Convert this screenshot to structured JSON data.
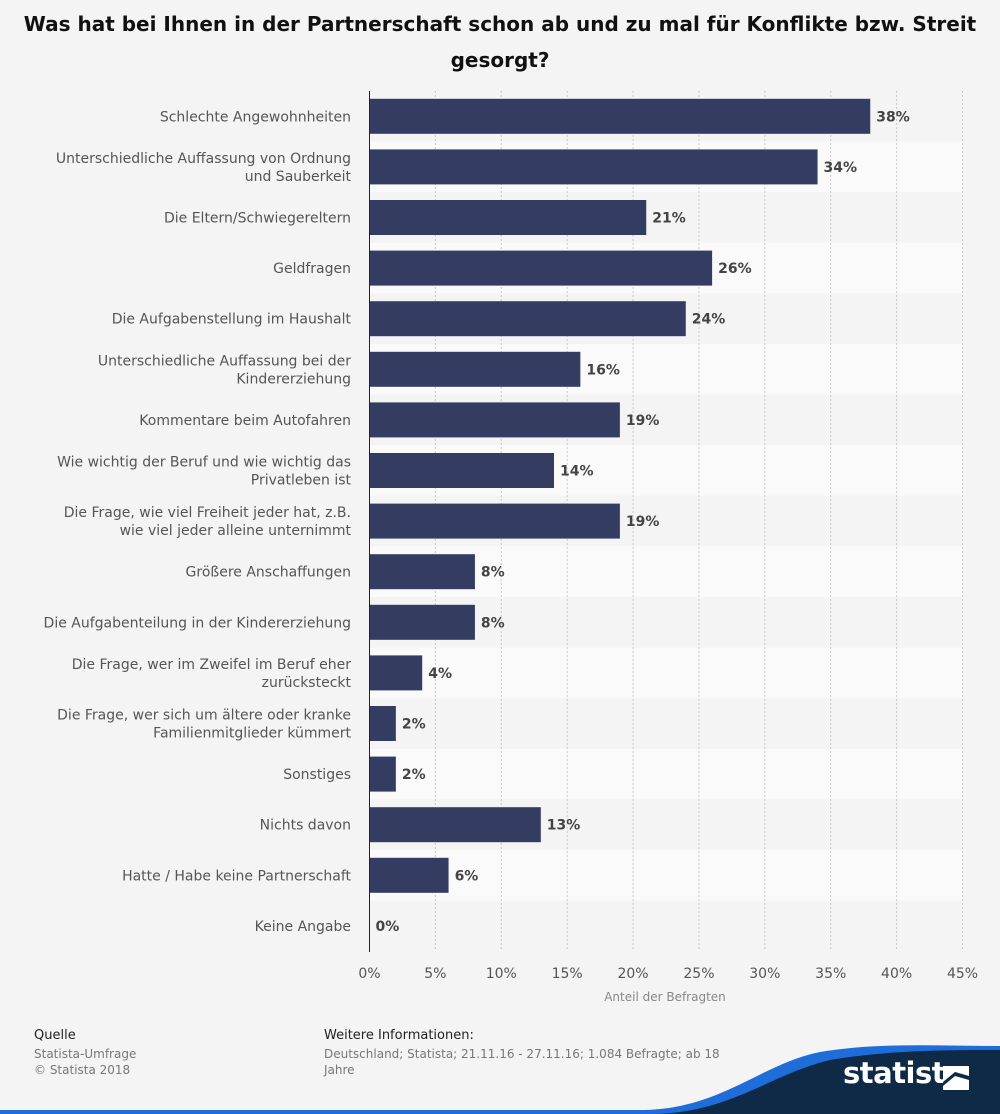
{
  "title": "Was hat bei Ihnen in der Partnerschaft schon ab und zu mal für Konflikte bzw. Streit gesorgt?",
  "chart_data": {
    "type": "bar",
    "orientation": "horizontal",
    "title": "Was hat bei Ihnen in der Partnerschaft schon ab und zu mal für Konflikte bzw. Streit gesorgt?",
    "xlabel": "Anteil der Befragten",
    "ylabel": "",
    "xlim": [
      0,
      45
    ],
    "xticks": [
      "0%",
      "5%",
      "10%",
      "15%",
      "20%",
      "25%",
      "30%",
      "35%",
      "40%",
      "45%"
    ],
    "bar_color": "#343c62",
    "categories": [
      [
        "Schlechte Angewohnheiten"
      ],
      [
        "Unterschiedliche Auffassung von Ordnung",
        "und Sauberkeit"
      ],
      [
        "Die Eltern/Schwiegereltern"
      ],
      [
        "Geldfragen"
      ],
      [
        "Die Aufgabenstellung im Haushalt"
      ],
      [
        "Unterschiedliche Auffassung bei der",
        "Kindererziehung"
      ],
      [
        "Kommentare beim Autofahren"
      ],
      [
        "Wie wichtig der Beruf und wie wichtig das",
        "Privatleben ist"
      ],
      [
        "Die Frage, wie viel Freiheit jeder hat, z.B.",
        "wie viel jeder alleine unternimmt"
      ],
      [
        "Größere Anschaffungen"
      ],
      [
        "Die Aufgabenteilung in der Kindererziehung"
      ],
      [
        "Die Frage, wer im Zweifel im Beruf eher",
        "zurücksteckt"
      ],
      [
        "Die Frage, wer sich um ältere oder kranke",
        "Familienmitglieder kümmert"
      ],
      [
        "Sonstiges"
      ],
      [
        "Nichts davon"
      ],
      [
        "Hatte / Habe keine Partnerschaft"
      ],
      [
        "Keine Angabe"
      ]
    ],
    "values": [
      38,
      34,
      21,
      26,
      24,
      16,
      19,
      14,
      19,
      8,
      8,
      4,
      2,
      2,
      13,
      6,
      0
    ],
    "value_labels": [
      "38%",
      "34%",
      "21%",
      "26%",
      "24%",
      "16%",
      "19%",
      "14%",
      "19%",
      "8%",
      "8%",
      "4%",
      "2%",
      "2%",
      "13%",
      "6%",
      "0%"
    ]
  },
  "footer": {
    "source_heading": "Quelle",
    "source_line1": "Statista-Umfrage",
    "source_line2": "© Statista 2018",
    "info_heading": "Weitere Informationen:",
    "info_line1": "Deutschland; Statista; 21.11.16 - 27.11.16; 1.084 Befragte; ab 18",
    "info_line2": "Jahre",
    "brand": "statista",
    "brand_band_color": "#0e2a47",
    "brand_accent_color": "#1f6dd8"
  }
}
